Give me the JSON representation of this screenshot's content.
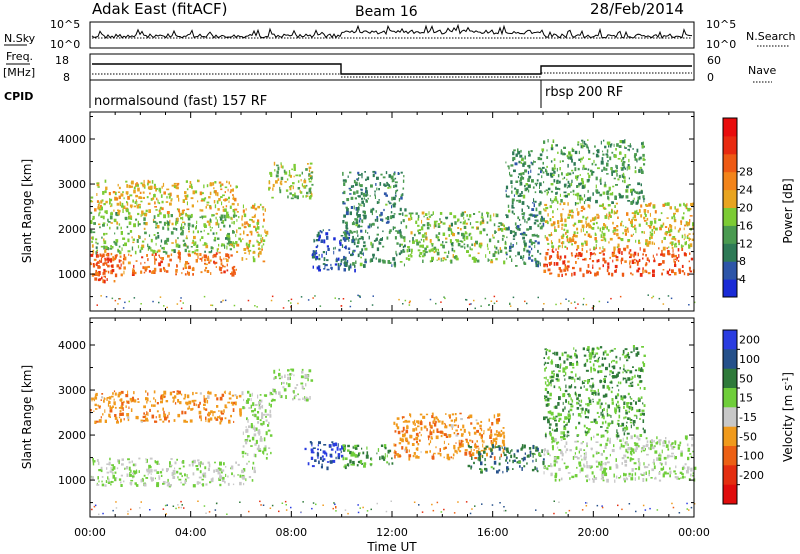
{
  "header": {
    "station": "Adak East (fitACF)",
    "beam": "Beam 16",
    "date": "28/Feb/2014"
  },
  "status_panel": {
    "nsky_label": "N.Sky",
    "nsearch_label": "N.Search",
    "noise_ticks": [
      "10^5",
      "10^0"
    ],
    "freq_label": "Freq.",
    "freq_unit": "[MHz]",
    "freq_ticks": [
      "18",
      "8"
    ],
    "nave_label": "Nave",
    "nave_ticks": [
      "60",
      "0"
    ],
    "cpid_label": "CPID",
    "cpid_modes": [
      "normalsound (fast) 157 RF",
      "rbsp 200 RF"
    ]
  },
  "colors": {
    "power": [
      "#1a2bd6",
      "#2d55a8",
      "#2e7a56",
      "#4a9a50",
      "#7ccb34",
      "#e8a420",
      "#f2841a",
      "#ee5a14",
      "#e82a10",
      "#e80c0c"
    ],
    "velocity": [
      "#2a3ce0",
      "#25508a",
      "#2f7a3a",
      "#6fce3a",
      "#c8c8c8",
      "#f09a1c",
      "#ec6014",
      "#e42e10",
      "#e00c0c"
    ]
  },
  "chart_data": [
    {
      "type": "heatmap",
      "title": "",
      "xlabel": "Time UT",
      "ylabel": "Slant Range [km]",
      "x_ticks": [
        "00:00",
        "04:00",
        "08:00",
        "12:00",
        "16:00",
        "20:00",
        "00:00"
      ],
      "y_ticks": [
        1000,
        2000,
        3000,
        4000
      ],
      "xlim_hours": [
        0,
        24
      ],
      "ylim_km": [
        180,
        4600
      ],
      "colorbar": {
        "label": "Power [dB]",
        "ticks": [
          4,
          8,
          12,
          16,
          20,
          24,
          28
        ]
      },
      "echo_regions": [
        {
          "t": [
            0.0,
            1.0
          ],
          "range_km": [
            850,
            1600
          ],
          "power_db": 26
        },
        {
          "t": [
            0.0,
            5.8
          ],
          "range_km": [
            1000,
            1500
          ],
          "power_db": 24
        },
        {
          "t": [
            0.0,
            5.8
          ],
          "range_km": [
            1500,
            2400
          ],
          "power_db": 14
        },
        {
          "t": [
            0.0,
            5.8
          ],
          "range_km": [
            2400,
            3100
          ],
          "power_db": 18
        },
        {
          "t": [
            5.8,
            7.0
          ],
          "range_km": [
            1300,
            2600
          ],
          "power_db": 18
        },
        {
          "t": [
            7.0,
            8.8
          ],
          "range_km": [
            2700,
            3500
          ],
          "power_db": 16
        },
        {
          "t": [
            8.8,
            10.5
          ],
          "range_km": [
            1100,
            2000
          ],
          "power_db": 6
        },
        {
          "t": [
            10.0,
            12.5
          ],
          "range_km": [
            1200,
            3300
          ],
          "power_db": 10
        },
        {
          "t": [
            12.5,
            16.5
          ],
          "range_km": [
            1300,
            2400
          ],
          "power_db": 14
        },
        {
          "t": [
            16.5,
            18.0
          ],
          "range_km": [
            1200,
            3800
          ],
          "power_db": 10
        },
        {
          "t": [
            18.0,
            24.0
          ],
          "range_km": [
            1000,
            1600
          ],
          "power_db": 26
        },
        {
          "t": [
            18.0,
            24.0
          ],
          "range_km": [
            1600,
            2600
          ],
          "power_db": 18
        },
        {
          "t": [
            18.0,
            22.0
          ],
          "range_km": [
            2600,
            4000
          ],
          "power_db": 12
        }
      ]
    },
    {
      "type": "heatmap",
      "title": "",
      "xlabel": "Time UT",
      "ylabel": "Slant Range [km]",
      "x_ticks": [
        "00:00",
        "04:00",
        "08:00",
        "12:00",
        "16:00",
        "20:00",
        "00:00"
      ],
      "y_ticks": [
        1000,
        2000,
        3000,
        4000
      ],
      "xlim_hours": [
        0,
        24
      ],
      "ylim_km": [
        180,
        4600
      ],
      "colorbar": {
        "label": "Velocity [m s^-1]",
        "ticks": [
          200,
          100,
          50,
          15,
          -15,
          -50,
          -100,
          -200
        ]
      },
      "echo_regions": [
        {
          "t": [
            0.0,
            6.5
          ],
          "range_km": [
            900,
            1500
          ],
          "velocity_ms": 0
        },
        {
          "t": [
            0.0,
            6.0
          ],
          "range_km": [
            2300,
            3000
          ],
          "velocity_ms": -60
        },
        {
          "t": [
            6.0,
            7.2
          ],
          "range_km": [
            1500,
            3000
          ],
          "velocity_ms": 0
        },
        {
          "t": [
            7.2,
            8.8
          ],
          "range_km": [
            2800,
            3500
          ],
          "velocity_ms": 0
        },
        {
          "t": [
            8.5,
            10.0
          ],
          "range_km": [
            1300,
            1900
          ],
          "velocity_ms": 150
        },
        {
          "t": [
            10.0,
            12.0
          ],
          "range_km": [
            1300,
            1800
          ],
          "velocity_ms": 40
        },
        {
          "t": [
            12.0,
            16.5
          ],
          "range_km": [
            1500,
            2500
          ],
          "velocity_ms": -60
        },
        {
          "t": [
            15.0,
            18.0
          ],
          "range_km": [
            1200,
            1800
          ],
          "velocity_ms": 60
        },
        {
          "t": [
            18.0,
            24.0
          ],
          "range_km": [
            1000,
            2000
          ],
          "velocity_ms": 0
        },
        {
          "t": [
            18.0,
            22.0
          ],
          "range_km": [
            2000,
            4000
          ],
          "velocity_ms": 30
        }
      ]
    }
  ]
}
